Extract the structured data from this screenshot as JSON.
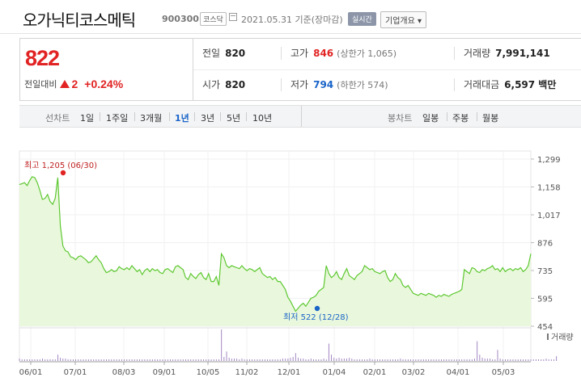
{
  "stock": {
    "name": "오가닉티코스메틱",
    "code": "900300",
    "market_badge": "코스닥",
    "date": "2021.05.31 기준(장마감)",
    "realtime_badge": "실시간",
    "company_dropdown": "기업개요 ▾",
    "price": "822",
    "change_label": "전일대비",
    "change_abs": "2",
    "change_pct": "+0.24%"
  },
  "stats": {
    "prev_close": {
      "label": "전일",
      "value": "820"
    },
    "high": {
      "label": "고가",
      "value": "846",
      "limit": "(상한가 1,065)"
    },
    "volume": {
      "label": "거래량",
      "value": "7,991,141"
    },
    "open": {
      "label": "시가",
      "value": "820"
    },
    "low": {
      "label": "저가",
      "value": "794",
      "limit": "(하한가 574)"
    },
    "trade_value": {
      "label": "거래대금",
      "value": "6,597 백만"
    }
  },
  "tabs": {
    "line_label": "선차트",
    "line_items": [
      "1일",
      "1주일",
      "3개월",
      "1년",
      "3년",
      "5년",
      "10년"
    ],
    "active": "1년",
    "candle_label": "봉차트",
    "candle_items": [
      "일봉",
      "주봉",
      "월봉"
    ]
  },
  "colors": {
    "up": "#e12323",
    "down": "#1a64c8",
    "line": "#5ec832",
    "fill": "#e9f8dc"
  },
  "chart_data": {
    "type": "area",
    "title": "",
    "ylim": [
      454,
      1299
    ],
    "y_ticks": [
      "1,299",
      "1,158",
      "1,017",
      "876",
      "735",
      "595",
      "454"
    ],
    "x_ticks": [
      "06/01",
      "07/01",
      "08/03",
      "09/01",
      "10/05",
      "11/02",
      "12/01",
      "01/04",
      "02/01",
      "03/02",
      "04/01",
      "05/03"
    ],
    "annotation_high": "최고 1,205 (06/30)",
    "annotation_low": "최저 522 (12/28)",
    "volume_label": "거래량",
    "series": [
      {
        "values": [
          1170,
          1175,
          1180,
          1165,
          1190,
          1210,
          1205,
          1180,
          1140,
          1095,
          1100,
          1120,
          1085,
          1070,
          1100,
          1205,
          960,
          860,
          835,
          830,
          805,
          800,
          790,
          805,
          810,
          800,
          790,
          775,
          780,
          795,
          810,
          790,
          775,
          745,
          725,
          730,
          740,
          730,
          735,
          755,
          745,
          740,
          750,
          740,
          760,
          745,
          730,
          740,
          715,
          735,
          745,
          730,
          745,
          735,
          740,
          725,
          720,
          740,
          745,
          735,
          725,
          755,
          760,
          750,
          740,
          700,
          690,
          720,
          705,
          695,
          715,
          725,
          700,
          690,
          720,
          680,
          680,
          705,
          660,
          820,
          800,
          760,
          750,
          760,
          755,
          750,
          745,
          760,
          745,
          735,
          745,
          740,
          730,
          740,
          750,
          720,
          710,
          700,
          705,
          690,
          700,
          680,
          680,
          660,
          640,
          600,
          580,
          555,
          530,
          545,
          560,
          570,
          555,
          575,
          595,
          600,
          610,
          630,
          640,
          650,
          760,
          720,
          700,
          710,
          730,
          700,
          690,
          720,
          745,
          710,
          700,
          690,
          710,
          720,
          730,
          760,
          750,
          740,
          745,
          730,
          725,
          720,
          730,
          735,
          700,
          680,
          690,
          720,
          700,
          690,
          660,
          650,
          660,
          640,
          620,
          615,
          610,
          620,
          615,
          610,
          620,
          615,
          610,
          600,
          610,
          605,
          615,
          610,
          605,
          615,
          620,
          625,
          630,
          640,
          740,
          730,
          720,
          750,
          745,
          730,
          725,
          740,
          735,
          745,
          750,
          760,
          740,
          745,
          730,
          750,
          730,
          740,
          745,
          735,
          745,
          740,
          750,
          730,
          740,
          760,
          820
        ]
      }
    ],
    "volume": [
      3,
      2,
      2,
      2,
      2,
      2,
      2,
      2,
      2,
      3,
      2,
      2,
      2,
      2,
      2,
      8,
      4,
      3,
      3,
      2,
      2,
      2,
      2,
      2,
      2,
      2,
      2,
      2,
      2,
      2,
      2,
      2,
      2,
      2,
      2,
      2,
      2,
      2,
      2,
      2,
      2,
      2,
      2,
      2,
      2,
      2,
      2,
      2,
      2,
      2,
      2,
      2,
      2,
      2,
      2,
      2,
      2,
      2,
      2,
      2,
      2,
      2,
      2,
      2,
      2,
      2,
      2,
      2,
      2,
      2,
      2,
      2,
      2,
      2,
      2,
      2,
      2,
      2,
      2,
      40,
      5,
      12,
      4,
      3,
      3,
      3,
      2,
      3,
      2,
      2,
      2,
      2,
      2,
      2,
      2,
      2,
      2,
      2,
      2,
      2,
      2,
      2,
      2,
      3,
      3,
      3,
      4,
      5,
      10,
      4,
      3,
      3,
      2,
      2,
      3,
      2,
      2,
      2,
      2,
      3,
      2,
      22,
      8,
      4,
      3,
      4,
      3,
      3,
      3,
      4,
      3,
      2,
      2,
      2,
      2,
      2,
      2,
      3,
      2,
      2,
      2,
      2,
      2,
      2,
      2,
      2,
      2,
      2,
      2,
      3,
      2,
      2,
      2,
      2,
      2,
      2,
      2,
      2,
      2,
      2,
      2,
      2,
      2,
      2,
      2,
      2,
      2,
      2,
      2,
      2,
      2,
      2,
      2,
      2,
      2,
      2,
      2,
      2,
      3,
      25,
      8,
      4,
      3,
      3,
      3,
      2,
      2,
      14,
      3,
      2,
      2,
      2,
      2,
      2,
      2,
      2,
      2,
      2,
      2,
      2,
      2,
      2,
      2,
      2,
      2,
      2,
      3,
      2,
      2,
      2,
      6
    ]
  }
}
